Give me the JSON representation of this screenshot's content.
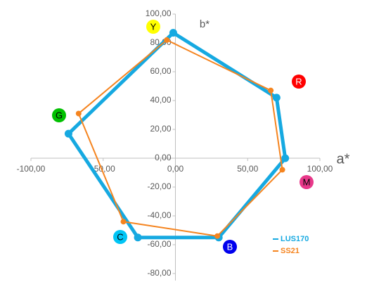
{
  "chart_data": {
    "type": "scatter-line",
    "x_label": "a*",
    "y_label": "b*",
    "xlim": [
      -100,
      100
    ],
    "xticks": [
      {
        "value": -100,
        "label": "-100,00"
      },
      {
        "value": -50,
        "label": "-50,00"
      },
      {
        "value": 0,
        "label": "0,00"
      },
      {
        "value": 50,
        "label": "50,00"
      },
      {
        "value": 100,
        "label": "100,00"
      }
    ],
    "ylim": [
      -80,
      100
    ],
    "yticks": [
      {
        "value": -80,
        "label": "-80,00"
      },
      {
        "value": -60,
        "label": "-60,00"
      },
      {
        "value": -40,
        "label": "-40,00"
      },
      {
        "value": -20,
        "label": "-20,00"
      },
      {
        "value": 0,
        "label": "0,00"
      },
      {
        "value": 20,
        "label": "20,00"
      },
      {
        "value": 40,
        "label": "40,00"
      },
      {
        "value": 60,
        "label": "60,00"
      },
      {
        "value": 80,
        "label": "80,00"
      },
      {
        "value": 100,
        "label": "100,00"
      }
    ],
    "closed": true,
    "series": [
      {
        "name": "LUS170",
        "color": "#16a9e1",
        "x": [
          -1.5,
          70,
          76,
          30,
          -26,
          -74
        ],
        "values": [
          87,
          42,
          0,
          -55,
          -55,
          17
        ]
      },
      {
        "name": "SS21",
        "color": "#f5841f",
        "x": [
          -6,
          66,
          74,
          29,
          -36,
          -67
        ],
        "values": [
          82,
          47,
          -8,
          -54,
          -44,
          31
        ]
      }
    ],
    "annotations": [
      {
        "text": "Y",
        "color": "#ffff00"
      },
      {
        "text": "R",
        "color": "#ff0000"
      },
      {
        "text": "M",
        "color": "#e8388a"
      },
      {
        "text": "B",
        "color": "#0000ee"
      },
      {
        "text": "C",
        "color": "#00c5f5"
      },
      {
        "text": "G",
        "color": "#00c000"
      }
    ]
  }
}
